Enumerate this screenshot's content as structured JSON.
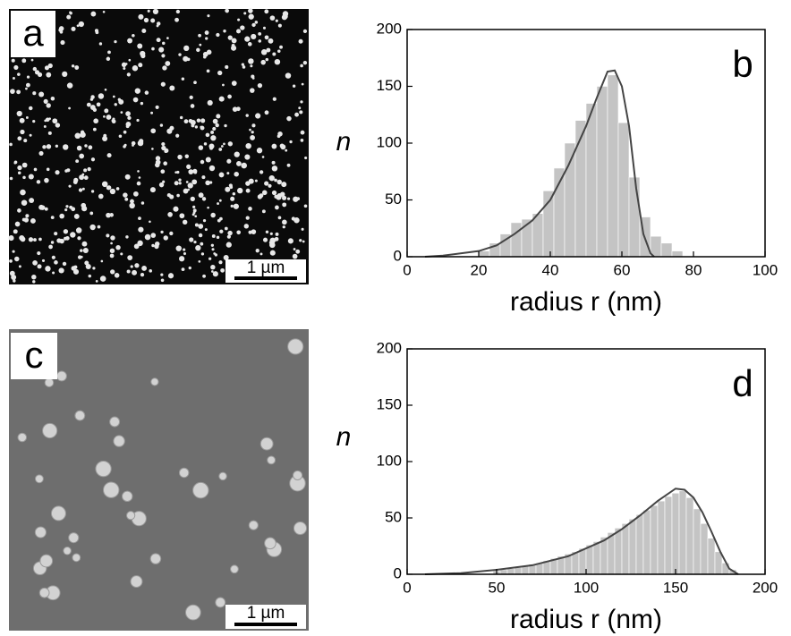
{
  "panels": [
    {
      "label": "a",
      "scale_bar": "1 µm"
    },
    {
      "label": "c",
      "scale_bar": "1 µm"
    }
  ],
  "chart_data": [
    {
      "type": "histogram",
      "label": "b",
      "y_label": "n",
      "x_label": "radius r (nm)",
      "color": "#c4c4c4",
      "bins": [
        20,
        23,
        26,
        29,
        32,
        35,
        38,
        41,
        44,
        47,
        50,
        53,
        56,
        59,
        62,
        65,
        68,
        71,
        74,
        77
      ],
      "values": [
        5,
        12,
        20,
        30,
        33,
        38,
        58,
        78,
        100,
        120,
        135,
        150,
        160,
        118,
        70,
        35,
        18,
        12,
        5
      ],
      "fit_color": "#444444",
      "fit_x": [
        5,
        10,
        20,
        25,
        30,
        35,
        40,
        45,
        50,
        53,
        56,
        58,
        60,
        62,
        64,
        66,
        68,
        69
      ],
      "fit_values": [
        0,
        1,
        5,
        10,
        20,
        32,
        50,
        80,
        115,
        140,
        163,
        164,
        150,
        115,
        60,
        20,
        3,
        0
      ],
      "xlim": [
        0,
        100
      ],
      "xticks": [
        0,
        20,
        40,
        60,
        80,
        100
      ],
      "ylim": [
        0,
        200
      ],
      "yticks": [
        0,
        50,
        100,
        150,
        200
      ]
    },
    {
      "type": "histogram",
      "label": "d",
      "y_label": "n",
      "x_label": "radius r (nm)",
      "color": "#c4c4c4",
      "bins": [
        48,
        52,
        56,
        60,
        64,
        68,
        72,
        76,
        80,
        84,
        88,
        92,
        96,
        100,
        104,
        108,
        112,
        116,
        120,
        124,
        128,
        132,
        136,
        140,
        144,
        148,
        152,
        156,
        160,
        164,
        168,
        172,
        176,
        180,
        184
      ],
      "values": [
        3,
        4,
        5,
        6,
        7,
        9,
        10,
        12,
        14,
        16,
        18,
        20,
        23,
        26,
        29,
        33,
        37,
        41,
        45,
        49,
        53,
        57,
        61,
        65,
        69,
        72,
        74,
        68,
        58,
        45,
        32,
        20,
        10,
        4
      ],
      "fit_color": "#444444",
      "fit_x": [
        10,
        30,
        50,
        70,
        90,
        110,
        120,
        130,
        140,
        150,
        155,
        160,
        165,
        170,
        175,
        180,
        185
      ],
      "fit_values": [
        0,
        1,
        4,
        8,
        16,
        30,
        40,
        52,
        65,
        76,
        75,
        68,
        55,
        38,
        20,
        5,
        0
      ],
      "xlim": [
        0,
        200
      ],
      "xticks": [
        0,
        50,
        100,
        150,
        200
      ],
      "ylim": [
        0,
        200
      ],
      "yticks": [
        0,
        50,
        100,
        150,
        200
      ]
    }
  ]
}
